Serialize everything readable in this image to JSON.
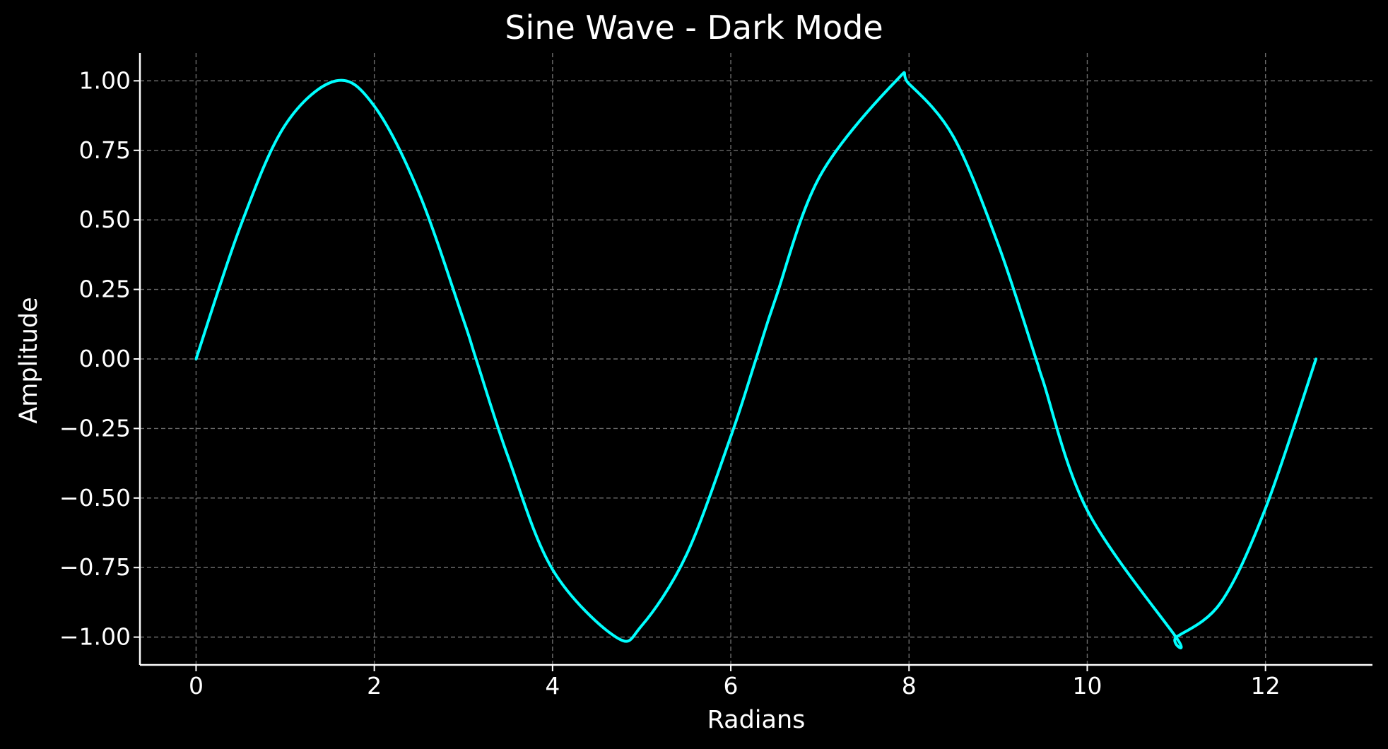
{
  "chart_data": {
    "type": "line",
    "title": "Sine Wave - Dark Mode",
    "xlabel": "Radians",
    "ylabel": "Amplitude",
    "xlim": [
      -0.63,
      13.2
    ],
    "ylim": [
      -1.1,
      1.1
    ],
    "x_ticks": [
      0,
      2,
      4,
      6,
      8,
      10,
      12
    ],
    "x_tick_labels": [
      "0",
      "2",
      "4",
      "6",
      "8",
      "10",
      "12"
    ],
    "y_ticks": [
      1.0,
      0.75,
      0.5,
      0.25,
      0.0,
      -0.25,
      -0.5,
      -0.75,
      -1.0
    ],
    "y_tick_labels": [
      "1.00",
      "0.75",
      "0.50",
      "0.25",
      "0.00",
      "−0.25",
      "−0.50",
      "−0.75",
      "−1.00"
    ],
    "grid": true,
    "colors": {
      "background": "#000000",
      "line": "#00ffff",
      "grid": "#6b6b6b",
      "text": "#ffffff"
    },
    "series": [
      {
        "function": "sin(x)",
        "x": [
          0,
          0.5,
          1.0,
          1.5708,
          2.0,
          2.5,
          3.0,
          3.1416,
          3.5,
          4.0,
          4.7124,
          5.0,
          5.5,
          6.0,
          6.2832,
          6.5,
          7.0,
          7.854,
          8.0,
          8.5,
          9.0,
          9.4248,
          9.5,
          10.0,
          10.9956,
          11.0,
          11.5,
          12.0,
          12.5664
        ],
        "y": [
          0.0,
          0.479,
          0.841,
          1.0,
          0.909,
          0.598,
          0.141,
          0.0,
          -0.351,
          -0.757,
          -1.0,
          -0.959,
          -0.706,
          -0.279,
          0.0,
          0.215,
          0.657,
          1.0,
          0.989,
          0.798,
          0.412,
          0.0,
          -0.075,
          -0.544,
          -1.0,
          -1.0,
          -0.875,
          -0.537,
          0.0
        ]
      }
    ]
  }
}
